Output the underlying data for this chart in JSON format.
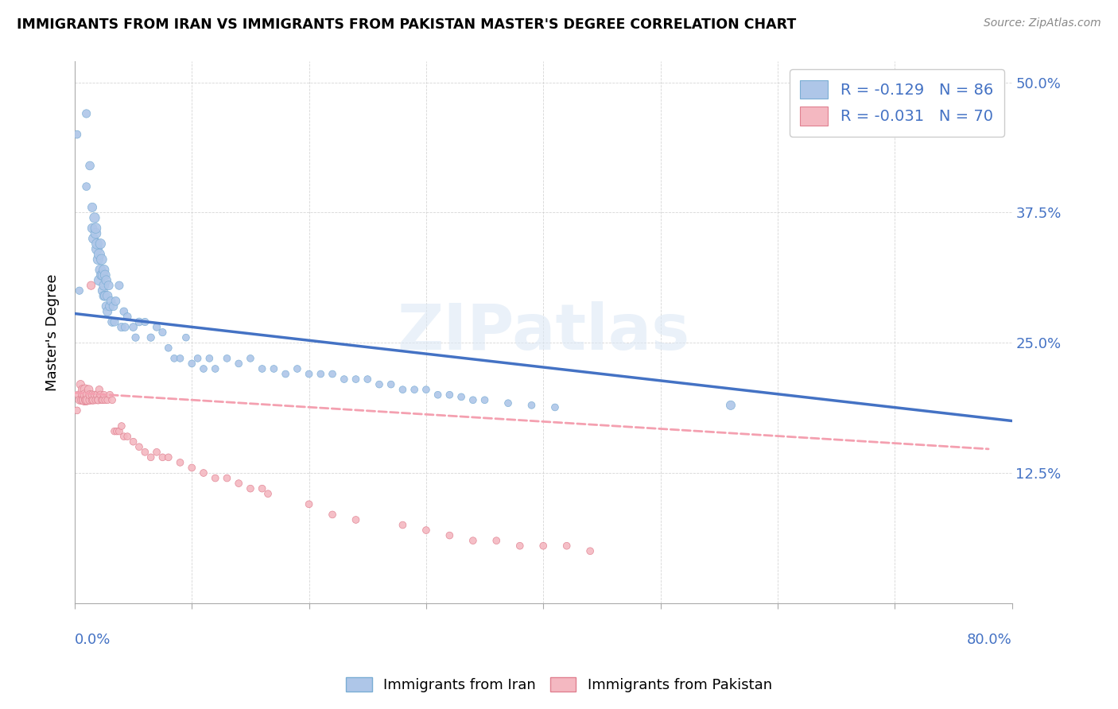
{
  "title": "IMMIGRANTS FROM IRAN VS IMMIGRANTS FROM PAKISTAN MASTER'S DEGREE CORRELATION CHART",
  "source": "Source: ZipAtlas.com",
  "ylabel": "Master's Degree",
  "watermark": "ZIPatlas",
  "iran_color": "#aec6e8",
  "iran_edge": "#7aadd4",
  "pakistan_color": "#f4b8c1",
  "pakistan_edge": "#e08090",
  "iran_line_color": "#4472c4",
  "pakistan_line_color": "#f4a0b0",
  "legend_iran_label": "R = -0.129   N = 86",
  "legend_pak_label": "R = -0.031   N = 70",
  "iran_scatter_x": [
    0.002,
    0.004,
    0.01,
    0.01,
    0.013,
    0.015,
    0.015,
    0.016,
    0.017,
    0.018,
    0.018,
    0.019,
    0.019,
    0.02,
    0.021,
    0.021,
    0.022,
    0.022,
    0.023,
    0.023,
    0.024,
    0.024,
    0.025,
    0.025,
    0.025,
    0.026,
    0.026,
    0.027,
    0.027,
    0.028,
    0.028,
    0.029,
    0.03,
    0.031,
    0.032,
    0.033,
    0.034,
    0.035,
    0.038,
    0.04,
    0.042,
    0.043,
    0.045,
    0.05,
    0.052,
    0.055,
    0.06,
    0.065,
    0.07,
    0.075,
    0.08,
    0.085,
    0.09,
    0.095,
    0.1,
    0.105,
    0.11,
    0.115,
    0.12,
    0.13,
    0.14,
    0.15,
    0.16,
    0.17,
    0.18,
    0.19,
    0.2,
    0.21,
    0.22,
    0.23,
    0.24,
    0.25,
    0.26,
    0.27,
    0.28,
    0.29,
    0.3,
    0.31,
    0.32,
    0.33,
    0.34,
    0.35,
    0.37,
    0.39,
    0.41,
    0.56
  ],
  "iran_scatter_y": [
    0.45,
    0.3,
    0.47,
    0.4,
    0.42,
    0.38,
    0.36,
    0.35,
    0.37,
    0.355,
    0.36,
    0.34,
    0.345,
    0.33,
    0.335,
    0.31,
    0.345,
    0.32,
    0.315,
    0.33,
    0.315,
    0.3,
    0.32,
    0.305,
    0.295,
    0.315,
    0.295,
    0.31,
    0.285,
    0.295,
    0.28,
    0.305,
    0.285,
    0.29,
    0.27,
    0.285,
    0.27,
    0.29,
    0.305,
    0.265,
    0.28,
    0.265,
    0.275,
    0.265,
    0.255,
    0.27,
    0.27,
    0.255,
    0.265,
    0.26,
    0.245,
    0.235,
    0.235,
    0.255,
    0.23,
    0.235,
    0.225,
    0.235,
    0.225,
    0.235,
    0.23,
    0.235,
    0.225,
    0.225,
    0.22,
    0.225,
    0.22,
    0.22,
    0.22,
    0.215,
    0.215,
    0.215,
    0.21,
    0.21,
    0.205,
    0.205,
    0.205,
    0.2,
    0.2,
    0.198,
    0.195,
    0.195,
    0.192,
    0.19,
    0.188,
    0.19
  ],
  "iran_scatter_s": [
    50,
    45,
    55,
    50,
    60,
    65,
    70,
    75,
    80,
    85,
    85,
    90,
    85,
    80,
    90,
    85,
    80,
    85,
    80,
    85,
    80,
    75,
    80,
    75,
    70,
    75,
    70,
    70,
    65,
    70,
    65,
    65,
    65,
    60,
    60,
    60,
    55,
    60,
    55,
    55,
    50,
    50,
    50,
    50,
    45,
    50,
    45,
    45,
    45,
    45,
    40,
    40,
    40,
    40,
    40,
    40,
    40,
    40,
    40,
    40,
    40,
    40,
    40,
    40,
    40,
    40,
    40,
    40,
    40,
    40,
    40,
    40,
    40,
    40,
    40,
    40,
    40,
    40,
    40,
    40,
    40,
    40,
    40,
    40,
    40,
    65
  ],
  "pak_scatter_x": [
    0.002,
    0.003,
    0.004,
    0.005,
    0.006,
    0.007,
    0.007,
    0.008,
    0.008,
    0.009,
    0.009,
    0.01,
    0.01,
    0.011,
    0.011,
    0.012,
    0.013,
    0.013,
    0.014,
    0.015,
    0.015,
    0.016,
    0.017,
    0.018,
    0.019,
    0.02,
    0.02,
    0.021,
    0.022,
    0.023,
    0.024,
    0.025,
    0.026,
    0.028,
    0.03,
    0.032,
    0.034,
    0.036,
    0.038,
    0.04,
    0.042,
    0.045,
    0.05,
    0.055,
    0.06,
    0.065,
    0.07,
    0.075,
    0.08,
    0.09,
    0.1,
    0.11,
    0.12,
    0.13,
    0.14,
    0.15,
    0.16,
    0.165,
    0.2,
    0.22,
    0.24,
    0.28,
    0.3,
    0.32,
    0.34,
    0.36,
    0.38,
    0.4,
    0.42,
    0.44
  ],
  "pak_scatter_y": [
    0.185,
    0.2,
    0.195,
    0.21,
    0.195,
    0.2,
    0.205,
    0.195,
    0.195,
    0.205,
    0.2,
    0.195,
    0.195,
    0.2,
    0.195,
    0.205,
    0.195,
    0.2,
    0.305,
    0.195,
    0.2,
    0.195,
    0.2,
    0.195,
    0.2,
    0.195,
    0.195,
    0.205,
    0.2,
    0.195,
    0.195,
    0.2,
    0.195,
    0.195,
    0.2,
    0.195,
    0.165,
    0.165,
    0.165,
    0.17,
    0.16,
    0.16,
    0.155,
    0.15,
    0.145,
    0.14,
    0.145,
    0.14,
    0.14,
    0.135,
    0.13,
    0.125,
    0.12,
    0.12,
    0.115,
    0.11,
    0.11,
    0.105,
    0.095,
    0.085,
    0.08,
    0.075,
    0.07,
    0.065,
    0.06,
    0.06,
    0.055,
    0.055,
    0.055,
    0.05
  ],
  "pak_scatter_s": [
    40,
    45,
    50,
    55,
    60,
    65,
    70,
    75,
    75,
    80,
    80,
    75,
    70,
    65,
    65,
    60,
    55,
    55,
    55,
    50,
    50,
    50,
    45,
    45,
    45,
    45,
    45,
    45,
    45,
    40,
    40,
    40,
    40,
    40,
    40,
    40,
    40,
    40,
    40,
    40,
    40,
    40,
    40,
    40,
    40,
    40,
    40,
    40,
    40,
    40,
    40,
    40,
    40,
    40,
    40,
    40,
    40,
    40,
    40,
    40,
    40,
    40,
    40,
    40,
    40,
    40,
    40,
    40,
    40,
    40
  ],
  "xlim": [
    0.0,
    0.8
  ],
  "ylim": [
    0.0,
    0.52
  ],
  "iran_trend_x": [
    0.0,
    0.8
  ],
  "iran_trend_y": [
    0.278,
    0.175
  ],
  "pak_trend_x": [
    0.0,
    0.78
  ],
  "pak_trend_y": [
    0.202,
    0.148
  ]
}
